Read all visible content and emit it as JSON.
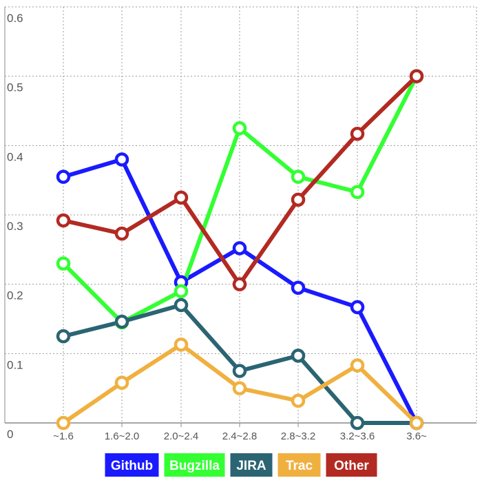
{
  "chart_data": {
    "type": "line",
    "title": "",
    "xlabel": "",
    "ylabel": "",
    "categories": [
      "~1.6",
      "1.6~2.0",
      "2.0~2.4",
      "2.4~2.8",
      "2.8~3.2",
      "3.2~3.6",
      "3.6~"
    ],
    "y_ticks": [
      "0",
      "0.1",
      "0.2",
      "0.3",
      "0.4",
      "0.5",
      "0.6"
    ],
    "ylim": [
      0,
      0.6
    ],
    "grid": true,
    "legend_position": "bottom",
    "series": [
      {
        "name": "Github",
        "color": "#1a1aff",
        "values": [
          0.355,
          0.38,
          0.203,
          0.252,
          0.195,
          0.167,
          0.0
        ]
      },
      {
        "name": "Bugzilla",
        "color": "#33ff33",
        "values": [
          0.23,
          0.145,
          0.19,
          0.425,
          0.355,
          0.333,
          0.5
        ]
      },
      {
        "name": "JIRA",
        "color": "#2b6473",
        "values": [
          0.125,
          0.146,
          0.17,
          0.075,
          0.097,
          0.0,
          0.0
        ]
      },
      {
        "name": "Trac",
        "color": "#f0b040",
        "values": [
          0.0,
          0.058,
          0.113,
          0.05,
          0.032,
          0.083,
          0.0
        ]
      },
      {
        "name": "Other",
        "color": "#b22a22",
        "values": [
          0.292,
          0.273,
          0.325,
          0.2,
          0.322,
          0.417,
          0.5
        ]
      }
    ]
  }
}
